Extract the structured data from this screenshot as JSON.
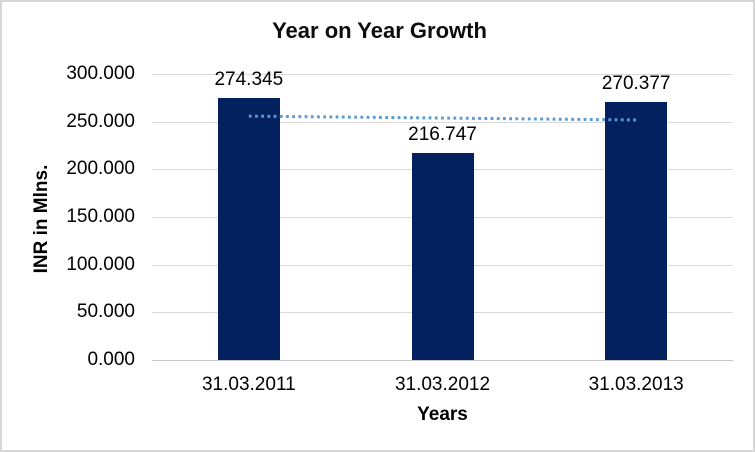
{
  "chart_data": {
    "type": "bar",
    "title": "Year on Year Growth",
    "xlabel": "Years",
    "ylabel": "INR in Mlns.",
    "categories": [
      "31.03.2011",
      "31.03.2012",
      "31.03.2013"
    ],
    "values": [
      274.345,
      216.747,
      270.377
    ],
    "data_labels": [
      "274.345",
      "216.747",
      "270.377"
    ],
    "ylim": [
      0,
      300
    ],
    "ytick_step": 50,
    "ytick_labels": [
      "300.000",
      "250.000",
      "200.000",
      "150.000",
      "100.000",
      "50.000",
      "0.000"
    ],
    "grid": true,
    "legend": "none",
    "colors": {
      "bar": "#03215e",
      "trendline": "#5b9bd5",
      "gridline": "#d9d9d9",
      "text": "#000000",
      "frame_border": "#d6d6d6",
      "background": "#ffffff"
    },
    "trendline": {
      "type": "linear",
      "style": "dotted",
      "color": "#5b9bd5",
      "values": [
        255.8,
        253.8,
        251.8
      ]
    }
  }
}
